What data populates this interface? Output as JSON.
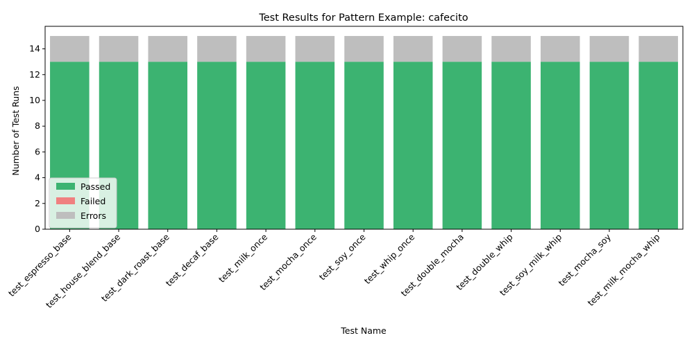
{
  "chart_data": {
    "type": "bar",
    "stacked": true,
    "title": "Test Results for Pattern Example: cafecito",
    "xlabel": "Test Name",
    "ylabel": "Number of Test Runs",
    "ylim": [
      0,
      15.75
    ],
    "yticks": [
      0,
      2,
      4,
      6,
      8,
      10,
      12,
      14
    ],
    "grid": false,
    "legend_position": "lower-left",
    "categories": [
      "test_espresso_base",
      "test_house_blend_base",
      "test_dark_roast_base",
      "test_decaf_base",
      "test_milk_once",
      "test_mocha_once",
      "test_soy_once",
      "test_whip_once",
      "test_double_mocha",
      "test_double_whip",
      "test_soy_milk_whip",
      "test_mocha_soy",
      "test_milk_mocha_whip"
    ],
    "series": [
      {
        "name": "Passed",
        "color": "#3cb371",
        "values": [
          13,
          13,
          13,
          13,
          13,
          13,
          13,
          13,
          13,
          13,
          13,
          13,
          13
        ]
      },
      {
        "name": "Failed",
        "color": "#f08080",
        "values": [
          0,
          0,
          0,
          0,
          0,
          0,
          0,
          0,
          0,
          0,
          0,
          0,
          0
        ]
      },
      {
        "name": "Errors",
        "color": "#bebebe",
        "values": [
          2,
          2,
          2,
          2,
          2,
          2,
          2,
          2,
          2,
          2,
          2,
          2,
          2
        ]
      }
    ]
  }
}
